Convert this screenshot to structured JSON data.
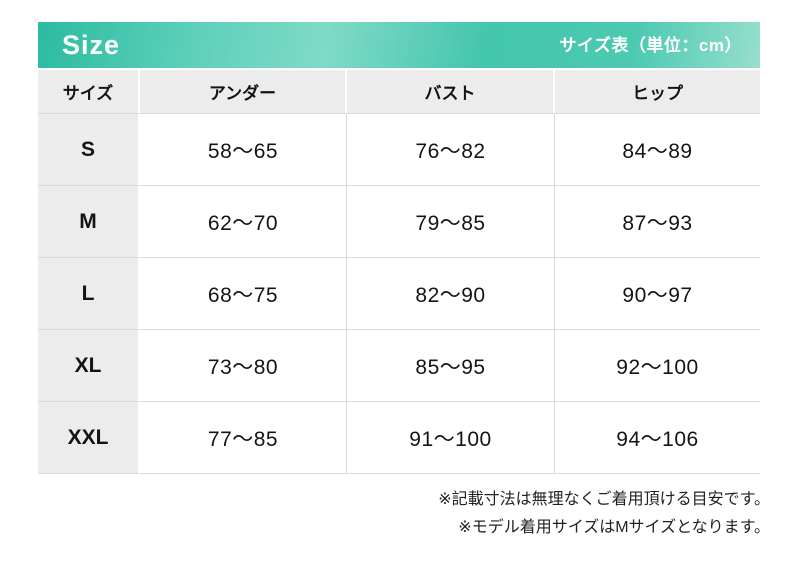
{
  "header": {
    "title": "Size",
    "subtitle": "サイズ表（単位：cm）"
  },
  "table": {
    "columns": [
      "サイズ",
      "アンダー",
      "バスト",
      "ヒップ"
    ],
    "rows": [
      {
        "size": "S",
        "under": "58〜65",
        "bust": "76〜82",
        "hip": "84〜89"
      },
      {
        "size": "M",
        "under": "62〜70",
        "bust": "79〜85",
        "hip": "87〜93"
      },
      {
        "size": "L",
        "under": "68〜75",
        "bust": "82〜90",
        "hip": "90〜97"
      },
      {
        "size": "XL",
        "under": "73〜80",
        "bust": "85〜95",
        "hip": "92〜100"
      },
      {
        "size": "XXL",
        "under": "77〜85",
        "bust": "91〜100",
        "hip": "94〜106"
      }
    ]
  },
  "notes": [
    "※記載寸法は無理なくご着用頂ける目安です。",
    "※モデル着用サイズはMサイズとなります。"
  ],
  "colors": {
    "accent_teal_dark": "#2bbba1",
    "accent_teal_mid": "#44c5ae",
    "accent_teal_light": "#97dfcc",
    "header_cell_bg": "#ececec",
    "cell_border": "#d9d9d9",
    "text": "#141414",
    "note_text": "#222222"
  }
}
